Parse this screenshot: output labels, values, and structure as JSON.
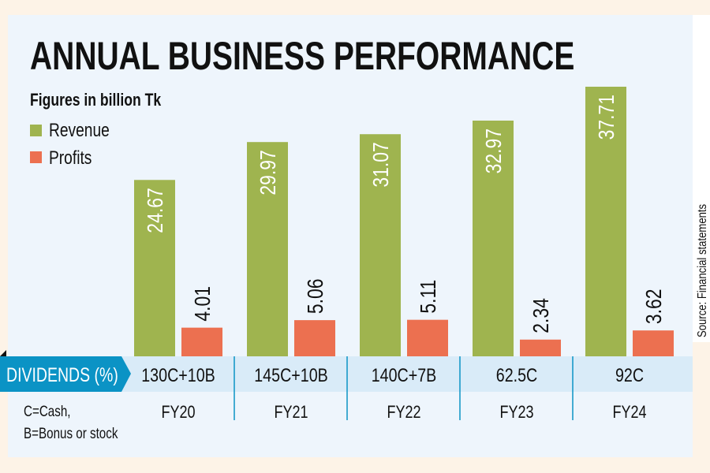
{
  "chart_data": {
    "type": "bar",
    "title": "ANNUAL BUSINESS PERFORMANCE",
    "subtitle": "Figures in billion Tk",
    "categories": [
      "FY20",
      "FY21",
      "FY22",
      "FY23",
      "FY24"
    ],
    "series": [
      {
        "name": "Revenue",
        "color": "#9fb44f",
        "values": [
          24.67,
          29.97,
          31.07,
          32.97,
          37.71
        ],
        "labels": [
          "24.67",
          "29.97",
          "31.07",
          "32.97",
          "37.71"
        ]
      },
      {
        "name": "Profits",
        "color": "#ec7050",
        "values": [
          4.01,
          5.06,
          5.11,
          2.34,
          3.62
        ],
        "labels": [
          "4.01",
          "5.06",
          "5.11",
          "2.34",
          "3.62"
        ]
      }
    ],
    "ylim": [
      0,
      40
    ],
    "grid": false,
    "legend": "top-left",
    "dividends": {
      "label": "DIVIDENDS (%)",
      "values": [
        "130C+10B",
        "145C+10B",
        "140C+7B",
        "62.5C",
        "92C"
      ],
      "color": "#0b93c5"
    },
    "notes": [
      "C=Cash,",
      "B=Bonus or stock"
    ],
    "source": "Source: Financial statements"
  }
}
